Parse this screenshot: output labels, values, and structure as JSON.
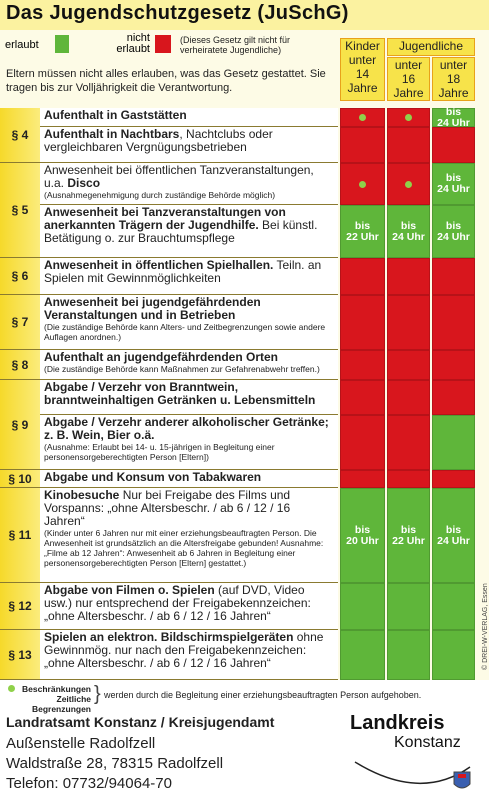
{
  "header": {
    "title": "Das Jugendschutzgesetz (JuSchG)"
  },
  "legend": {
    "allowed": "erlaubt",
    "not_allowed": "nicht erlaubt",
    "note": "(Dieses Gesetz gilt nicht für verheiratete Jugendliche)"
  },
  "columns": {
    "children": {
      "title": "Kinder",
      "lines": [
        "unter",
        "14",
        "Jahre"
      ]
    },
    "youth": "Jugendliche",
    "youth16": [
      "unter",
      "16",
      "Jahre"
    ],
    "youth18": [
      "unter",
      "18",
      "Jahre"
    ]
  },
  "intro": "Eltern müssen nicht alles erlauben, was das Gesetz gestattet. Sie tragen bis zur Volljährigkeit die Verantwortung.",
  "sections": [
    {
      "label": "§ 4",
      "rows": [
        {
          "bold": "Aufenthalt in Gaststätten",
          "cells": [
            {
              "color": "red",
              "dot": true
            },
            {
              "color": "red",
              "dot": true
            },
            {
              "color": "green",
              "label": [
                "bis",
                "24 Uhr"
              ]
            }
          ]
        },
        {
          "bold": "Aufenthalt in Nachtbars",
          "text": ", Nachtclubs oder vergleichbaren Vergnügungsbetrieben",
          "cells": [
            {
              "color": "red"
            },
            {
              "color": "red"
            },
            {
              "color": "red"
            }
          ]
        }
      ]
    },
    {
      "label": "§ 5",
      "rows": [
        {
          "text": "Anwesenheit bei öffentlichen Tanzveranstaltungen, u.a. ",
          "bold": "Disco",
          "note": "(Ausnahmegenehmigung durch zuständige Behörde möglich)",
          "cells": [
            {
              "color": "red",
              "dot": true
            },
            {
              "color": "red",
              "dot": true
            },
            {
              "color": "green",
              "label": [
                "bis",
                "24 Uhr"
              ]
            }
          ]
        },
        {
          "bold": "Anwesenheit bei Tanzveranstaltungen von anerkannten Trägern der Jugendhilfe.",
          "text": " Bei künstl. Betätigung o. zur Brauchtumspflege",
          "cells": [
            {
              "color": "green",
              "label": [
                "bis",
                "22 Uhr"
              ]
            },
            {
              "color": "green",
              "label": [
                "bis",
                "24 Uhr"
              ]
            },
            {
              "color": "green",
              "label": [
                "bis",
                "24 Uhr"
              ]
            }
          ]
        }
      ]
    },
    {
      "label": "§ 6",
      "rows": [
        {
          "bold": "Anwesenheit in öffentlichen Spielhallen.",
          "text": " Teiln. an Spielen mit Gewinnmöglichkeiten",
          "cells": [
            {
              "color": "red"
            },
            {
              "color": "red"
            },
            {
              "color": "red"
            }
          ]
        }
      ]
    },
    {
      "label": "§ 7",
      "rows": [
        {
          "bold": "Anwesenheit bei jugendgefährdenden Veranstaltungen und in Betrieben",
          "note": "(Die zuständige Behörde kann Alters- und Zeitbegrenzungen sowie andere Auflagen anordnen.)",
          "cells": [
            {
              "color": "red"
            },
            {
              "color": "red"
            },
            {
              "color": "red"
            }
          ]
        }
      ]
    },
    {
      "label": "§ 8",
      "rows": [
        {
          "bold": "Aufenthalt an jugendgefährdenden Orten",
          "note": "(Die zuständige Behörde kann Maßnahmen zur Gefahrenabwehr treffen.)",
          "cells": [
            {
              "color": "red"
            },
            {
              "color": "red"
            },
            {
              "color": "red"
            }
          ]
        }
      ]
    },
    {
      "label": "§ 9",
      "rows": [
        {
          "bold": "Abgabe / Verzehr von Branntwein, branntweinhaltigen Getränken u. Lebensmitteln",
          "cells": [
            {
              "color": "red"
            },
            {
              "color": "red"
            },
            {
              "color": "red"
            }
          ]
        },
        {
          "bold": "Abgabe / Verzehr anderer alkoholischer Getränke; z. B. Wein, Bier o.ä.",
          "note": "(Ausnahme: Erlaubt bei 14- u. 15-jährigen in Begleitung einer personensorgeberechtigten Person [Eltern])",
          "cells": [
            {
              "color": "red"
            },
            {
              "color": "red"
            },
            {
              "color": "green"
            }
          ]
        }
      ]
    },
    {
      "label": "§ 10",
      "rows": [
        {
          "bold": "Abgabe und Konsum von Tabakwaren",
          "cells": [
            {
              "color": "red"
            },
            {
              "color": "red"
            },
            {
              "color": "red"
            }
          ]
        }
      ]
    },
    {
      "label": "§ 11",
      "rows": [
        {
          "bold": "Kinobesuche",
          "text": " Nur bei Freigabe des Films und Vorspanns: „ohne Altersbeschr. / ab 6 / 12 / 16 Jahren“",
          "note": "(Kinder unter 6 Jahren nur mit einer erziehungsbeauftragten Person. Die Anwesenheit ist grundsätzlich an die Altersfreigabe gebunden! Ausnahme: „Filme ab 12 Jahren“: Anwesenheit ab 6 Jahren in Begleitung einer personensorgeberechtigten Person [Eltern] gestattet.)",
          "cells": [
            {
              "color": "green",
              "label": [
                "bis",
                "20 Uhr"
              ]
            },
            {
              "color": "green",
              "label": [
                "bis",
                "22 Uhr"
              ]
            },
            {
              "color": "green",
              "label": [
                "bis",
                "24 Uhr"
              ]
            }
          ]
        }
      ]
    },
    {
      "label": "§ 12",
      "rows": [
        {
          "bold": "Abgabe von Filmen o. Spielen",
          "text": " (auf DVD, Video usw.) nur entsprechend der Freigabekennzeichen: „ohne Altersbeschr. / ab 6 / 12 / 16 Jahren“",
          "cells": [
            {
              "color": "green"
            },
            {
              "color": "green"
            },
            {
              "color": "green"
            }
          ]
        }
      ]
    },
    {
      "label": "§ 13",
      "rows": [
        {
          "bold": "Spielen an elektron. Bildschirmspielgeräten",
          "text": " ohne Gewinnmög. nur nach den Freigabekennzeichen: „ohne Altersbeschr. / ab 6 / 12 / 16 Jahren“",
          "cells": [
            {
              "color": "green"
            },
            {
              "color": "green"
            },
            {
              "color": "green"
            }
          ]
        }
      ]
    }
  ],
  "copyright": "© DREI-W-VERLAG, Essen",
  "footer": {
    "dot_legend": [
      "Beschränkungen",
      "Zeitliche Begrenzungen"
    ],
    "dot_note": "werden durch die Begleitung einer erziehungsbeauftragten Person aufgehoben.",
    "office": "Landratsamt Konstanz / Kreisjugendamt",
    "branch": "Außenstelle Radolfzell",
    "address": "Waldstraße 28, 78315 Radolfzell",
    "phone": "Telefon: 07732/94064-70",
    "logo": [
      "Landkreis",
      "Konstanz"
    ]
  }
}
